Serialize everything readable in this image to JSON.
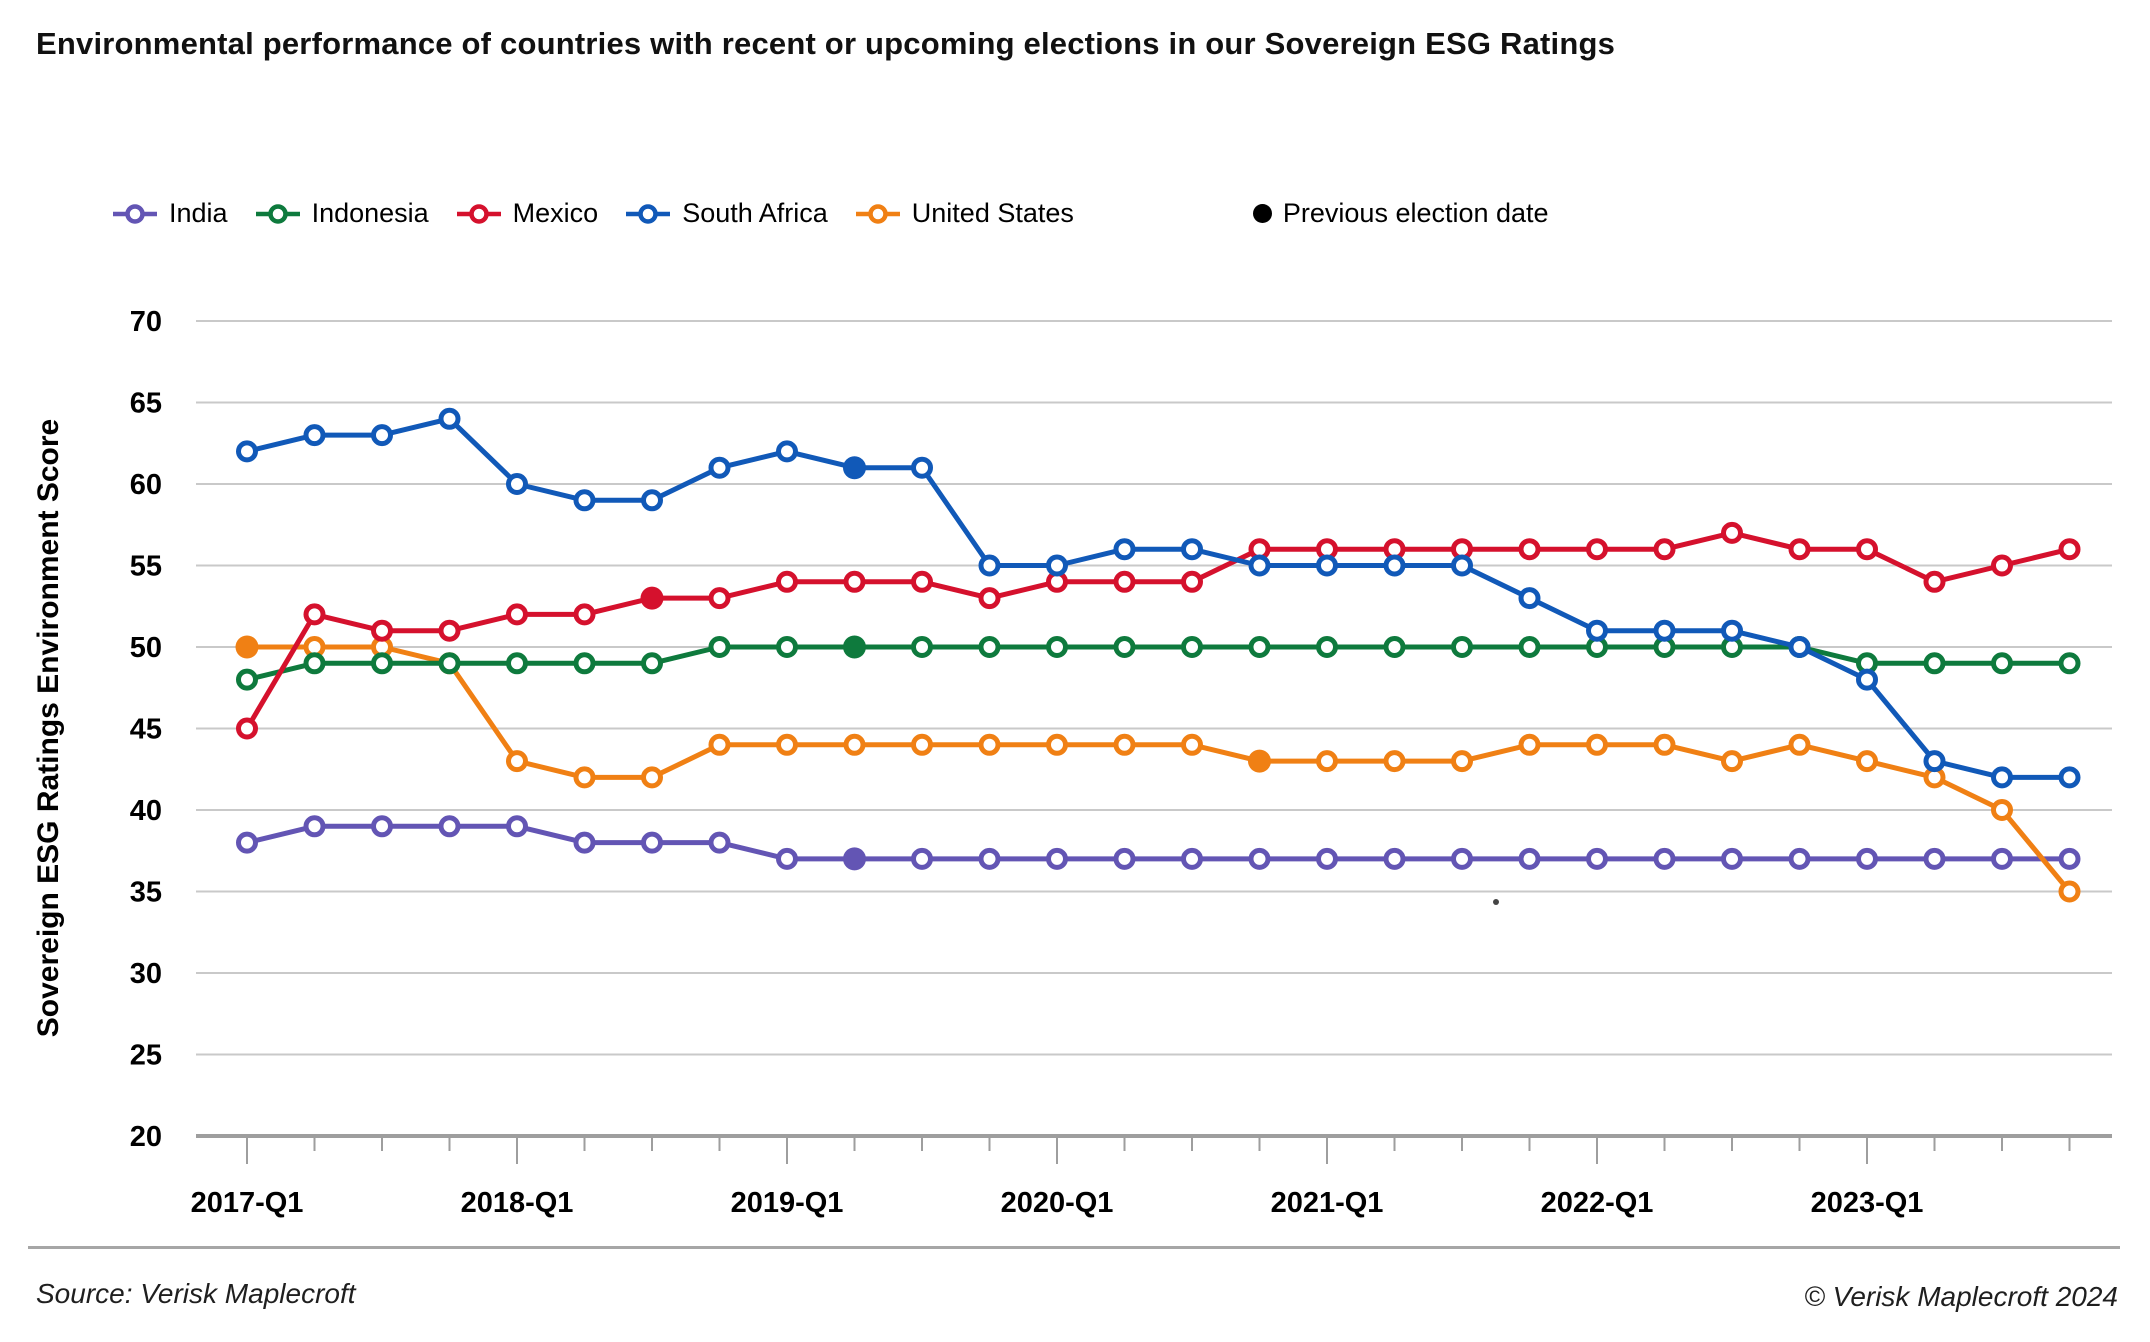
{
  "title": "Environmental performance of countries with recent or upcoming elections in our Sovereign ESG Ratings",
  "legend": {
    "items": [
      {
        "label": "India"
      },
      {
        "label": "Indonesia"
      },
      {
        "label": "Mexico"
      },
      {
        "label": "South Africa"
      },
      {
        "label": "United States"
      }
    ],
    "election_label": "Previous election date",
    "election_color": "#000000"
  },
  "chart_data": {
    "type": "line",
    "title": "Environmental performance of countries with recent or upcoming elections in our Sovereign ESG Ratings",
    "ylabel": "Sovereign ESG Ratings Environment Score",
    "xlabel": "",
    "ylim": [
      20,
      70
    ],
    "ytick_step": 5,
    "grid": "horizontal",
    "legend_position": "top",
    "x_major_tick_labels": [
      "2017-Q1",
      "2018-Q1",
      "2019-Q1",
      "2020-Q1",
      "2021-Q1",
      "2022-Q1",
      "2023-Q1"
    ],
    "categories": [
      "2017-Q1",
      "2017-Q2",
      "2017-Q3",
      "2017-Q4",
      "2018-Q1",
      "2018-Q2",
      "2018-Q3",
      "2018-Q4",
      "2019-Q1",
      "2019-Q2",
      "2019-Q3",
      "2019-Q4",
      "2020-Q1",
      "2020-Q2",
      "2020-Q3",
      "2020-Q4",
      "2021-Q1",
      "2021-Q2",
      "2021-Q3",
      "2021-Q4",
      "2022-Q1",
      "2022-Q2",
      "2022-Q3",
      "2022-Q4",
      "2023-Q1",
      "2023-Q2",
      "2023-Q3",
      "2023-Q4"
    ],
    "series": [
      {
        "name": "India",
        "color": "#6355b4",
        "values": [
          38,
          39,
          39,
          39,
          39,
          38,
          38,
          38,
          37,
          37,
          37,
          37,
          37,
          37,
          37,
          37,
          37,
          37,
          37,
          37,
          37,
          37,
          37,
          37,
          37,
          37,
          37,
          37
        ],
        "election_indices": [
          9
        ]
      },
      {
        "name": "Indonesia",
        "color": "#0e7a3d",
        "values": [
          48,
          49,
          49,
          49,
          49,
          49,
          49,
          50,
          50,
          50,
          50,
          50,
          50,
          50,
          50,
          50,
          50,
          50,
          50,
          50,
          50,
          50,
          50,
          50,
          49,
          49,
          49,
          49
        ],
        "election_indices": [
          9
        ]
      },
      {
        "name": "Mexico",
        "color": "#d5112d",
        "values": [
          45,
          52,
          51,
          51,
          52,
          52,
          53,
          53,
          54,
          54,
          54,
          53,
          54,
          54,
          54,
          56,
          56,
          56,
          56,
          56,
          56,
          56,
          57,
          56,
          56,
          54,
          55,
          56
        ],
        "election_indices": [
          6
        ]
      },
      {
        "name": "South Africa",
        "color": "#1159b8",
        "values": [
          62,
          63,
          63,
          64,
          60,
          59,
          59,
          61,
          62,
          61,
          61,
          55,
          55,
          56,
          56,
          55,
          55,
          55,
          55,
          53,
          51,
          51,
          51,
          50,
          48,
          43,
          42,
          42
        ],
        "election_indices": [
          9
        ]
      },
      {
        "name": "United States",
        "color": "#f08014",
        "values": [
          50,
          50,
          50,
          49,
          43,
          42,
          42,
          44,
          44,
          44,
          44,
          44,
          44,
          44,
          44,
          43,
          43,
          43,
          43,
          44,
          44,
          44,
          43,
          44,
          43,
          42,
          40,
          35
        ],
        "election_indices": [
          0,
          15
        ]
      }
    ]
  },
  "footer": {
    "source": "Source: Verisk Maplecroft",
    "copyright": "© Verisk Maplecroft 2024"
  }
}
